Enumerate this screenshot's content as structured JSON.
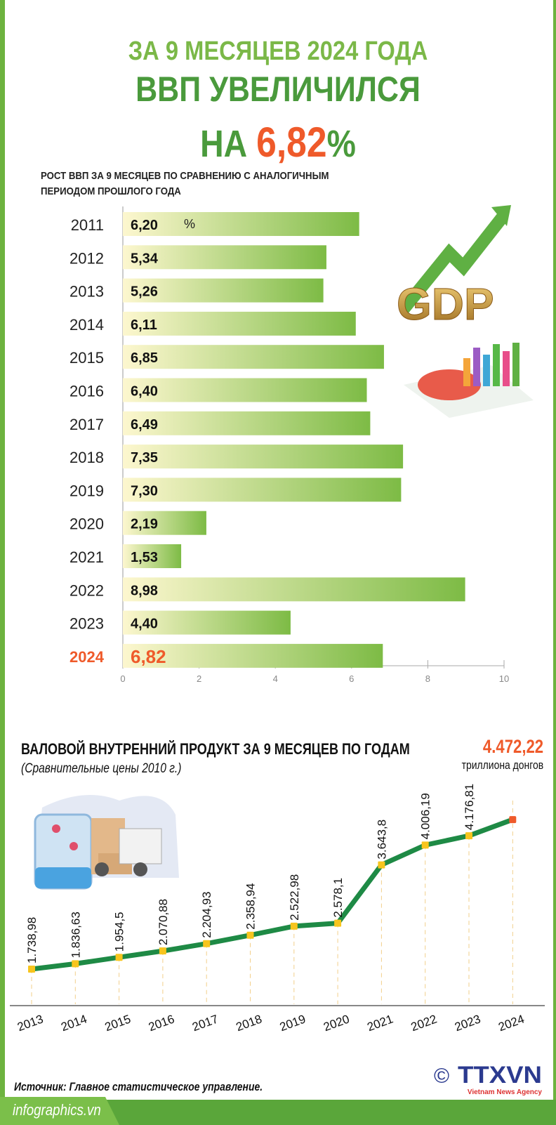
{
  "header": {
    "line1": "ЗА 9 МЕСЯЦЕВ 2024 ГОДА",
    "line2": "ВВП УВЕЛИЧИЛСЯ",
    "line3_prefix": "НА",
    "line3_value": "6,82",
    "line3_suffix": "%"
  },
  "chart_data": [
    {
      "type": "bar",
      "orientation": "horizontal",
      "title": "РОСТ ВВП ЗА 9 МЕСЯЦЕВ ПО СРАВНЕНИЮ С АНАЛОГИЧНЫМ ПЕРИОДОМ ПРОШЛОГО ГОДА",
      "unit": "%",
      "categories": [
        "2011",
        "2012",
        "2013",
        "2014",
        "2015",
        "2016",
        "2017",
        "2018",
        "2019",
        "2020",
        "2021",
        "2022",
        "2023",
        "2024"
      ],
      "values": [
        6.2,
        5.34,
        5.26,
        6.11,
        6.85,
        6.4,
        6.49,
        7.35,
        7.3,
        2.19,
        1.53,
        8.98,
        4.4,
        6.82
      ],
      "labels": [
        "6,20",
        "5,34",
        "5,26",
        "6,11",
        "6,85",
        "6,40",
        "6,49",
        "7,35",
        "7,30",
        "2,19",
        "1,53",
        "8,98",
        "4,40",
        "6,82"
      ],
      "xlim": [
        0,
        10
      ],
      "ticks": [
        "0",
        "2",
        "4",
        "6",
        "8",
        "10"
      ],
      "highlight": "2024",
      "colors": {
        "bar_start": "#fdf7cf",
        "bar_end": "#7dbb45",
        "highlight": "#ef5a2a"
      }
    },
    {
      "type": "line",
      "title": "ВАЛОВОЙ ВНУТРЕННИЙ ПРОДУКТ ЗА 9 МЕСЯЦЕВ ПО ГОДАМ",
      "subtitle": "(Сравнительные цены 2010 г.)",
      "unit": "триллиона донгов",
      "x": [
        "2013",
        "2014",
        "2015",
        "2016",
        "2017",
        "2018",
        "2019",
        "2020",
        "2021",
        "2022",
        "2023",
        "2024"
      ],
      "values": [
        1738.98,
        1836.63,
        1954.5,
        2070.88,
        2204.93,
        2358.94,
        2522.98,
        2578.1,
        3643.8,
        4006.19,
        4176.81,
        4472.22
      ],
      "labels": [
        "1.738,98",
        "1.836,63",
        "1.954,5",
        "2.070,88",
        "2.204,93",
        "2.358,94",
        "2.522,98",
        "2.578,1",
        "3.643,8",
        "4.006,19",
        "4.176,81",
        "4.472,22"
      ],
      "colors": {
        "line": "#1e8a45",
        "marker": "#f7c51e",
        "last_marker": "#ef5a2a"
      }
    }
  ],
  "footer": {
    "source": "Источник: Главное статистическое управление.",
    "site": "infographics.vn",
    "copyright": "©",
    "agency": "TTXVN",
    "agency_sub": "Vietnam News Agency"
  },
  "illustrations": {
    "gdp_label": "GDP"
  }
}
